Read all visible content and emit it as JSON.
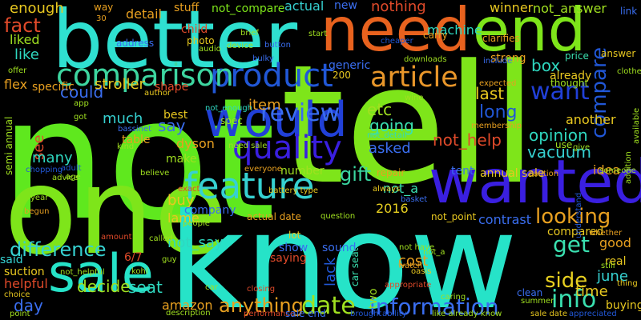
{
  "background": "#000000",
  "words": [
    {
      "text": "not",
      "color": "#5fe81e"
    },
    {
      "text": "tell",
      "color": "#7ee51a"
    },
    {
      "text": "one",
      "color": "#7ee51a"
    },
    {
      "text": "know",
      "color": "#26e3c8"
    },
    {
      "text": "better",
      "color": "#2fe0d0"
    },
    {
      "text": "need",
      "color": "#e8621e"
    },
    {
      "text": "end",
      "color": "#7ee51a"
    },
    {
      "text": "wanted",
      "color": "#3a1fe0"
    },
    {
      "text": "sale",
      "color": "#26e3c8"
    },
    {
      "text": "would",
      "color": "#2140d8"
    },
    {
      "text": "feature",
      "color": "#36d1d1"
    },
    {
      "text": "quality",
      "color": "#3a1fe0"
    },
    {
      "text": "product",
      "color": "#2157d6"
    },
    {
      "text": "comparison",
      "color": "#3dd6a0"
    },
    {
      "text": "article",
      "color": "#e8962a"
    },
    {
      "text": "review",
      "color": "#3a6ef0"
    },
    {
      "text": "want",
      "color": "#2140d8"
    },
    {
      "text": "info",
      "color": "#3ae0b0"
    },
    {
      "text": "information",
      "color": "#3a6ef0"
    },
    {
      "text": "date",
      "color": "#a0e020"
    },
    {
      "text": "anything",
      "color": "#e8a020"
    },
    {
      "text": "looking",
      "color": "#e8a020"
    },
    {
      "text": "get",
      "color": "#3ae0b0"
    },
    {
      "text": "side",
      "color": "#e8d020"
    },
    {
      "text": "difference",
      "color": "#36d1d1"
    },
    {
      "text": "gift",
      "color": "#3ad6a0"
    },
    {
      "text": "fact",
      "color": "#e04a2a"
    },
    {
      "text": "enough",
      "color": "#e8c820"
    },
    {
      "text": "like",
      "color": "#2fd8c0"
    },
    {
      "text": "liked",
      "color": "#a0e020"
    },
    {
      "text": "flex",
      "color": "#e8a020"
    },
    {
      "text": "could",
      "color": "#3a6ef0"
    },
    {
      "text": "see",
      "color": "#e04a2a"
    },
    {
      "text": "stroller",
      "color": "#e8c820"
    },
    {
      "text": "much",
      "color": "#36d1d1"
    },
    {
      "text": "say",
      "color": "#3a6ef0"
    },
    {
      "text": "many",
      "color": "#2fd8c0"
    },
    {
      "text": "item",
      "color": "#e8a020"
    },
    {
      "text": "etc",
      "color": "#a0e020"
    },
    {
      "text": "going",
      "color": "#3ae0b0"
    },
    {
      "text": "not_help",
      "color": "#e04a2a"
    },
    {
      "text": "opinion",
      "color": "#2fd8c0"
    },
    {
      "text": "compare",
      "color": "#2157d6"
    },
    {
      "text": "vacuum",
      "color": "#36d1d1"
    },
    {
      "text": "asked",
      "color": "#3a6ef0"
    },
    {
      "text": "last",
      "color": "#e8c820"
    },
    {
      "text": "long",
      "color": "#2157d6"
    },
    {
      "text": "box",
      "color": "#2fd8c0"
    },
    {
      "text": "comparison_small",
      "color": "#a0e020"
    },
    {
      "text": "machine",
      "color": "#2fd8c0"
    },
    {
      "text": "nothing",
      "color": "#e04a2a"
    },
    {
      "text": "new",
      "color": "#3a6ef0"
    },
    {
      "text": "actual",
      "color": "#36d1d1"
    },
    {
      "text": "not_compare",
      "color": "#7ee51a"
    },
    {
      "text": "stuff",
      "color": "#e8a020"
    },
    {
      "text": "detail",
      "color": "#e8a020"
    },
    {
      "text": "way",
      "color": "#e8a020"
    },
    {
      "text": "winner",
      "color": "#e8c820"
    },
    {
      "text": "not_answer",
      "color": "#a0e020"
    },
    {
      "text": "link",
      "color": "#3a6ef0"
    },
    {
      "text": "strong",
      "color": "#e8a020"
    },
    {
      "text": "price",
      "color": "#3ae0b0"
    },
    {
      "text": "answer",
      "color": "#e8c820"
    },
    {
      "text": "already",
      "color": "#e8c820"
    },
    {
      "text": "thought",
      "color": "#a0e020"
    },
    {
      "text": "another",
      "color": "#e8c820"
    },
    {
      "text": "use",
      "color": "#a0e020"
    },
    {
      "text": "idea",
      "color": "#e8a020"
    },
    {
      "text": "tent",
      "color": "#3a6ef0"
    },
    {
      "text": "annual sale",
      "color": "#e8c820"
    },
    {
      "text": "not_a",
      "color": "#3ae0b0"
    },
    {
      "text": "2016",
      "color": "#e8d020"
    },
    {
      "text": "contrast",
      "color": "#3a6ef0"
    },
    {
      "text": "not_point",
      "color": "#e8c820"
    },
    {
      "text": "compared",
      "color": "#e8c820"
    },
    {
      "text": "good",
      "color": "#e8a020"
    },
    {
      "text": "june",
      "color": "#36d1d1"
    },
    {
      "text": "real",
      "color": "#e8c820"
    },
    {
      "text": "time",
      "color": "#e8c820"
    },
    {
      "text": "buying",
      "color": "#e8c820"
    },
    {
      "text": "cost",
      "color": "#e8a020"
    },
    {
      "text": "lack",
      "color": "#2157d6"
    },
    {
      "text": "two",
      "color": "#a0e020"
    },
    {
      "text": "sound",
      "color": "#3a6ef0"
    },
    {
      "text": "show",
      "color": "#3a6ef0"
    },
    {
      "text": "saying",
      "color": "#e04a2a"
    },
    {
      "text": "not_say",
      "color": "#2fd8c0"
    },
    {
      "text": "lame",
      "color": "#e8c820"
    },
    {
      "text": "buy",
      "color": "#e8c820"
    },
    {
      "text": "seat",
      "color": "#2fd8c0"
    },
    {
      "text": "amazon",
      "color": "#e8a020"
    },
    {
      "text": "decide",
      "color": "#a0e020"
    },
    {
      "text": "day",
      "color": "#3a6ef0"
    },
    {
      "text": "said",
      "color": "#36d1d1"
    },
    {
      "text": "helpful",
      "color": "#e04a2a"
    },
    {
      "text": "suction",
      "color": "#e8c820"
    },
    {
      "text": "6/7",
      "color": "#e04a2a"
    },
    {
      "text": "company",
      "color": "#3a6ef0"
    },
    {
      "text": "actual date",
      "color": "#e8a020"
    },
    {
      "text": "make",
      "color": "#a0e020"
    },
    {
      "text": "dyson",
      "color": "#e8a020"
    },
    {
      "text": "best",
      "color": "#e8c820"
    },
    {
      "text": "table",
      "color": "#e8a020"
    },
    {
      "text": "number",
      "color": "#a0e020"
    },
    {
      "text": "spec",
      "color": "#a0e020"
    },
    {
      "text": "200",
      "color": "#e8c820"
    },
    {
      "text": "generic",
      "color": "#3a6ef0"
    },
    {
      "text": "semi annual",
      "color": "#a0e020"
    },
    {
      "text": "specific",
      "color": "#e8a020"
    },
    {
      "text": "shape",
      "color": "#e04a2a"
    },
    {
      "text": "address",
      "color": "#3a6ef0"
    },
    {
      "text": "child",
      "color": "#e04a2a"
    },
    {
      "text": "photo",
      "color": "#e8c820"
    },
    {
      "text": "brief",
      "color": "#a0e020"
    },
    {
      "text": "button",
      "color": "#3a6ef0"
    },
    {
      "text": "start",
      "color": "#a0e020"
    },
    {
      "text": "cheaper",
      "color": "#2157d6"
    },
    {
      "text": "carry",
      "color": "#e8a020"
    },
    {
      "text": "clarifies",
      "color": "#e8a020"
    },
    {
      "text": "device",
      "color": "#a0e020"
    },
    {
      "text": "audio",
      "color": "#a0e020"
    },
    {
      "text": "wine",
      "color": "#a0e020"
    },
    {
      "text": "bulky",
      "color": "#3a6ef0"
    },
    {
      "text": "downloads",
      "color": "#a0e020"
    },
    {
      "text": "include",
      "color": "#3a6ef0"
    },
    {
      "text": "not_enough",
      "color": "#2fd8c0"
    },
    {
      "text": "need sale",
      "color": "#a0e020"
    },
    {
      "text": "everyone",
      "color": "#e8a020"
    },
    {
      "text": "believe",
      "color": "#a0e020"
    },
    {
      "text": "kind",
      "color": "#a0e020"
    },
    {
      "text": "adult",
      "color": "#2157d6"
    },
    {
      "text": "advice",
      "color": "#a0e020"
    },
    {
      "text": "chopping",
      "color": "#2157d6"
    },
    {
      "text": "offer",
      "color": "#a0e020"
    },
    {
      "text": "got",
      "color": "#a0e020"
    },
    {
      "text": "app",
      "color": "#a0e020"
    },
    {
      "text": "30",
      "color": "#e8a020"
    },
    {
      "text": "author",
      "color": "#e8c820"
    },
    {
      "text": "bassinet",
      "color": "#3a6ef0"
    },
    {
      "text": "battery type",
      "color": "#e8c820"
    },
    {
      "text": "lot",
      "color": "#e8c820"
    },
    {
      "text": "question",
      "color": "#a0e020"
    },
    {
      "text": "always",
      "color": "#e8c820"
    },
    {
      "text": "basket",
      "color": "#3a6ef0"
    },
    {
      "text": "not_detail",
      "color": "#2fd8c0"
    },
    {
      "text": "repair",
      "color": "#e8a020"
    },
    {
      "text": "exact",
      "color": "#e04a2a"
    },
    {
      "text": "people",
      "color": "#a0e020"
    },
    {
      "text": "called",
      "color": "#a0e020"
    },
    {
      "text": "year",
      "color": "#a0e020"
    },
    {
      "text": "begun",
      "color": "#e8a020"
    },
    {
      "text": "age",
      "color": "#a0e020"
    },
    {
      "text": "amount",
      "color": "#e04a2a"
    },
    {
      "text": "guy",
      "color": "#a0e020"
    },
    {
      "text": "kohl",
      "color": "#a0e020"
    },
    {
      "text": "not_helpful",
      "color": "#a0e020"
    },
    {
      "text": "choice",
      "color": "#e8c820"
    },
    {
      "text": "point",
      "color": "#a0e020"
    },
    {
      "text": "description",
      "color": "#a0e020"
    },
    {
      "text": "performance",
      "color": "#e04a2a"
    },
    {
      "text": "sale end",
      "color": "#3a6ef0"
    },
    {
      "text": "brought",
      "color": "#2157d6"
    },
    {
      "text": "ability",
      "color": "#2157d6"
    },
    {
      "text": "like already know",
      "color": "#a0e020"
    },
    {
      "text": "sale date",
      "color": "#e8c820"
    },
    {
      "text": "appreciated",
      "color": "#2157d6"
    },
    {
      "text": "closing",
      "color": "#e04a2a"
    },
    {
      "text": "caring",
      "color": "#a0e020"
    },
    {
      "text": "clean",
      "color": "#3a6ef0"
    },
    {
      "text": "summer",
      "color": "#a0e020"
    },
    {
      "text": "still",
      "color": "#a0e020"
    },
    {
      "text": "thing",
      "color": "#e8c820"
    },
    {
      "text": "car seat",
      "color": "#3ae0b0"
    },
    {
      "text": "oasis",
      "color": "#e8c820"
    },
    {
      "text": "watch",
      "color": "#e8a020"
    },
    {
      "text": "not have",
      "color": "#a0e020"
    },
    {
      "text": "appropriate",
      "color": "#e04a2a"
    },
    {
      "text": "membership",
      "color": "#e8a020"
    },
    {
      "text": "expected",
      "color": "#e8a020"
    },
    {
      "text": "caution",
      "color": "#e8a020"
    },
    {
      "text": "give",
      "color": "#a0e020"
    },
    {
      "text": "someone",
      "color": "#a0e020"
    },
    {
      "text": "understand",
      "color": "#2157d6"
    },
    {
      "text": "whether",
      "color": "#e8a020"
    },
    {
      "text": "available",
      "color": "#a0e020"
    },
    {
      "text": "addition",
      "color": "#a0e020"
    },
    {
      "text": "clothes",
      "color": "#a0e020"
    },
    {
      "text": "car",
      "color": "#a0e020"
    },
    {
      "text": "not_a_small",
      "color": "#a0e020"
    }
  ]
}
